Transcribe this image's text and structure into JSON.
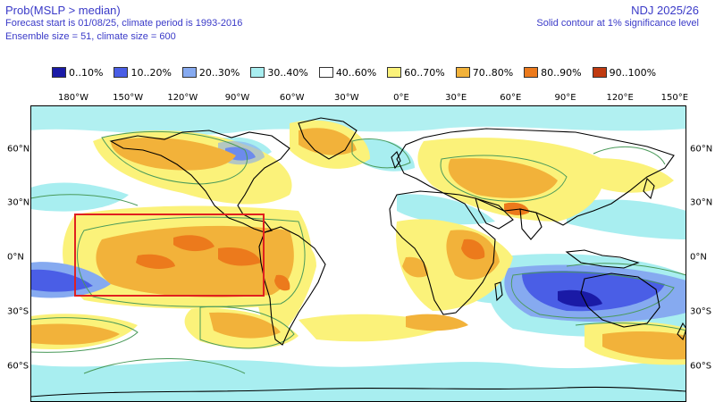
{
  "header": {
    "title": "Prob(MSLP > median)",
    "line2": "Forecast start is 01/08/25, climate period is 1993-2016",
    "line3": "Ensemble size = 51, climate size = 600",
    "period": "NDJ 2025/26",
    "note": "Solid contour at 1% significance level"
  },
  "legend": [
    {
      "label": "0..10%",
      "color": "#1a1aa6"
    },
    {
      "label": "10..20%",
      "color": "#4a5ee6"
    },
    {
      "label": "20..30%",
      "color": "#86aaf0"
    },
    {
      "label": "30..40%",
      "color": "#a8eef0"
    },
    {
      "label": "40..60%",
      "color": "#ffffff"
    },
    {
      "label": "60..70%",
      "color": "#fbf27a"
    },
    {
      "label": "70..80%",
      "color": "#f2b23a"
    },
    {
      "label": "80..90%",
      "color": "#ec7a1c"
    },
    {
      "label": "90..100%",
      "color": "#c03a10"
    }
  ],
  "longitude_ticks": [
    "180°W",
    "150°W",
    "120°W",
    "90°W",
    "60°W",
    "30°W",
    "0°E",
    "30°E",
    "60°E",
    "90°E",
    "120°E",
    "150°E"
  ],
  "latitude_ticks": [
    "60°N",
    "30°N",
    "0°N",
    "30°S",
    "60°S"
  ],
  "highlight_box": {
    "color": "#e02020",
    "lon_range": [
      -180,
      -75
    ],
    "lat_range": [
      -25,
      23
    ]
  }
}
